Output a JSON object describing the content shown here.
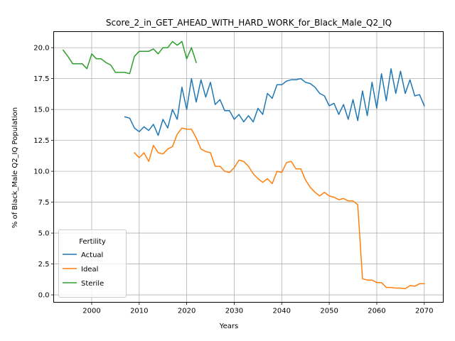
{
  "chart_data": {
    "type": "line",
    "title": "Score_2_in_GET_AHEAD_WITH_HARD_WORK_for_Black_Male_Q2_IQ",
    "xlabel": "Years",
    "ylabel": "% of Black_Male Q2_IQ Population",
    "xlim": [
      1992,
      2074
    ],
    "ylim": [
      -0.6,
      21.3
    ],
    "xticks": [
      2000,
      2010,
      2020,
      2030,
      2040,
      2050,
      2060,
      2070
    ],
    "yticks": [
      0.0,
      2.5,
      5.0,
      7.5,
      10.0,
      12.5,
      15.0,
      17.5,
      20.0
    ],
    "xtick_labels": [
      "2000",
      "2010",
      "2020",
      "2030",
      "2040",
      "2050",
      "2060",
      "2070"
    ],
    "ytick_labels": [
      "0.0",
      "2.5",
      "5.0",
      "7.5",
      "10.0",
      "12.5",
      "15.0",
      "17.5",
      "20.0"
    ],
    "grid": true,
    "legend": {
      "title": "Fertility",
      "placement": "bottom-left"
    },
    "series": [
      {
        "name": "Actual",
        "color": "#1f77b4",
        "x": [
          2007,
          2008,
          2009,
          2010,
          2011,
          2012,
          2013,
          2014,
          2015,
          2016,
          2017,
          2018,
          2019,
          2020,
          2021,
          2022,
          2023,
          2024,
          2025,
          2026,
          2027,
          2028,
          2029,
          2030,
          2031,
          2032,
          2033,
          2034,
          2035,
          2036,
          2037,
          2038,
          2039,
          2040,
          2041,
          2042,
          2043,
          2044,
          2045,
          2046,
          2047,
          2048,
          2049,
          2050,
          2051,
          2052,
          2053,
          2054,
          2055,
          2056,
          2057,
          2058,
          2059,
          2060,
          2061,
          2062,
          2063,
          2064,
          2065,
          2066,
          2067,
          2068,
          2069,
          2070
        ],
        "y": [
          14.4,
          14.3,
          13.5,
          13.2,
          13.6,
          13.3,
          13.8,
          12.9,
          14.2,
          13.5,
          15.0,
          14.2,
          16.8,
          15.0,
          17.5,
          15.6,
          17.4,
          16.0,
          17.2,
          15.4,
          15.8,
          14.9,
          14.9,
          14.2,
          14.6,
          14.0,
          14.5,
          14.0,
          15.1,
          14.6,
          16.3,
          15.9,
          17.0,
          17.0,
          17.3,
          17.4,
          17.4,
          17.5,
          17.2,
          17.1,
          16.8,
          16.3,
          16.1,
          15.3,
          15.5,
          14.6,
          15.4,
          14.2,
          15.8,
          14.1,
          16.5,
          14.5,
          17.2,
          15.1,
          17.9,
          15.7,
          18.3,
          16.3,
          18.1,
          16.3,
          17.4,
          16.1,
          16.2,
          15.3
        ]
      },
      {
        "name": "Ideal",
        "color": "#ff7f0e",
        "x": [
          2009,
          2010,
          2011,
          2012,
          2013,
          2014,
          2015,
          2016,
          2017,
          2018,
          2019,
          2020,
          2021,
          2022,
          2023,
          2024,
          2025,
          2026,
          2027,
          2028,
          2029,
          2030,
          2031,
          2032,
          2033,
          2034,
          2035,
          2036,
          2037,
          2038,
          2039,
          2040,
          2041,
          2042,
          2043,
          2044,
          2045,
          2046,
          2047,
          2048,
          2049,
          2050,
          2051,
          2052,
          2053,
          2054,
          2055,
          2056,
          2057,
          2058,
          2059,
          2060,
          2061,
          2062,
          2063,
          2064,
          2065,
          2066,
          2067,
          2068,
          2069,
          2070
        ],
        "y": [
          11.5,
          11.1,
          11.5,
          10.8,
          12.1,
          11.5,
          11.4,
          11.8,
          12.0,
          13.0,
          13.5,
          13.4,
          13.4,
          12.7,
          11.8,
          11.6,
          11.5,
          10.4,
          10.4,
          10.0,
          9.9,
          10.3,
          10.9,
          10.8,
          10.4,
          9.8,
          9.4,
          9.1,
          9.4,
          9.0,
          10.0,
          9.9,
          10.7,
          10.8,
          10.2,
          10.2,
          9.3,
          8.7,
          8.3,
          8.0,
          8.3,
          8.0,
          7.9,
          7.7,
          7.8,
          7.6,
          7.6,
          7.3,
          1.3,
          1.2,
          1.2,
          1.0,
          1.0,
          0.6,
          0.6,
          0.55,
          0.55,
          0.5,
          0.75,
          0.7,
          0.9,
          0.9
        ]
      },
      {
        "name": "Sterile",
        "color": "#2ca02c",
        "x": [
          1994,
          1995,
          1996,
          1997,
          1998,
          1999,
          2000,
          2001,
          2002,
          2003,
          2004,
          2005,
          2006,
          2007,
          2008,
          2009,
          2010,
          2011,
          2012,
          2013,
          2014,
          2015,
          2016,
          2017,
          2018,
          2019,
          2020,
          2021,
          2022
        ],
        "y": [
          19.8,
          19.3,
          18.7,
          18.7,
          18.7,
          18.3,
          19.5,
          19.1,
          19.1,
          18.8,
          18.6,
          18.0,
          18.0,
          18.0,
          17.9,
          19.3,
          19.7,
          19.7,
          19.7,
          19.9,
          19.5,
          20.0,
          20.0,
          20.5,
          20.2,
          20.5,
          19.1,
          20.0,
          18.8
        ]
      }
    ]
  }
}
